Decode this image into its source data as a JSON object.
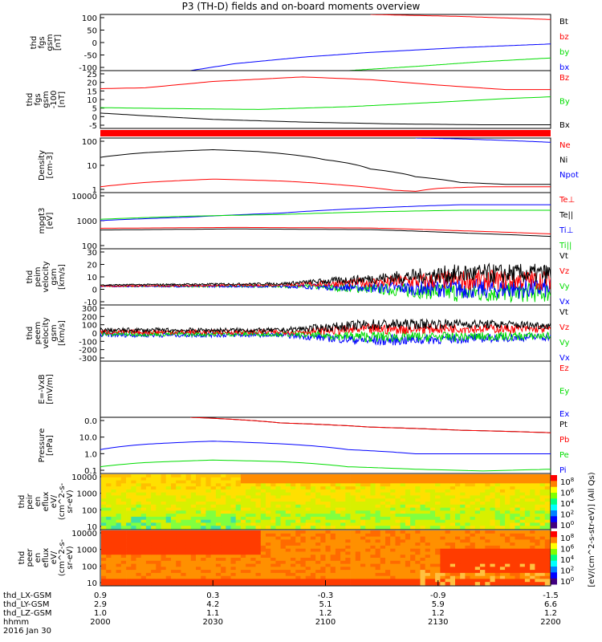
{
  "title": "P3 (TH-D) fields and on-board moments overview",
  "x_axis": {
    "rows": [
      {
        "label": "thd_LX-GSM",
        "values": [
          "0.9",
          "0.3",
          "-0.3",
          "-0.9",
          "-1.5"
        ]
      },
      {
        "label": "thd_LY-GSM",
        "values": [
          "2.9",
          "4.2",
          "5.1",
          "5.9",
          "6.6"
        ]
      },
      {
        "label": "thd_LZ-GSM",
        "values": [
          "1.0",
          "1.1",
          "1.2",
          "1.2",
          "1.2"
        ]
      },
      {
        "label": "hhmm",
        "values": [
          "2000",
          "2030",
          "2100",
          "2130",
          "2200"
        ]
      }
    ],
    "date_label": "2016 Jan 30"
  },
  "colorbar_label": "[eV/(cm^2-s-str-eV)] (All Qs)",
  "colors": {
    "black": "#000000",
    "red": "#ff0000",
    "green": "#00dd00",
    "blue": "#0000ff"
  },
  "chart_data": [
    {
      "type": "line",
      "name": "fgs_gsm",
      "ylabel_lines": [
        "thd",
        "fgs",
        "gsm",
        "[nT]"
      ],
      "ylim": [
        -100,
        100
      ],
      "yticks": [
        "100",
        "50",
        "0",
        "-50",
        "-100"
      ],
      "legend": [
        {
          "label": "Bt",
          "color": "#000000"
        },
        {
          "label": "bz",
          "color": "#ff0000"
        },
        {
          "label": "by",
          "color": "#00dd00"
        },
        {
          "label": "bx",
          "color": "#0000ff"
        }
      ],
      "series": [
        {
          "color": "#ff0000",
          "x": [
            0.6,
            0.8,
            1.0
          ],
          "y": [
            100,
            93,
            82
          ]
        },
        {
          "color": "#0000ff",
          "x": [
            0.2,
            0.3,
            0.45,
            0.6,
            0.8,
            1.0
          ],
          "y": [
            -100,
            -75,
            -52,
            -35,
            -18,
            -5
          ]
        },
        {
          "color": "#00dd00",
          "x": [
            0.55,
            0.7,
            0.85,
            1.0
          ],
          "y": [
            -100,
            -85,
            -68,
            -55
          ]
        }
      ]
    },
    {
      "type": "line",
      "name": "fgs_gsm_zoom",
      "ylabel_lines": [
        "thd",
        "fgs",
        "gsm",
        "-100",
        "[nT]"
      ],
      "ylim": [
        -7,
        25
      ],
      "yticks": [
        "25",
        "20",
        "15",
        "10",
        "5",
        "0",
        "-5"
      ],
      "legend": [
        {
          "label": "Bz",
          "color": "#ff0000"
        },
        {
          "label": "By",
          "color": "#00dd00"
        },
        {
          "label": "Bx",
          "color": "#000000"
        }
      ],
      "series": [
        {
          "color": "#ff0000",
          "x": [
            0,
            0.1,
            0.25,
            0.45,
            0.6,
            0.75,
            0.9,
            1.0
          ],
          "y": [
            15,
            15.5,
            19,
            21.5,
            20,
            17,
            14.5,
            14.5
          ]
        },
        {
          "color": "#00dd00",
          "x": [
            0,
            0.15,
            0.35,
            0.55,
            0.75,
            0.9,
            1.0
          ],
          "y": [
            4.5,
            4,
            3.5,
            5,
            7.5,
            9.5,
            10.5
          ]
        },
        {
          "color": "#000000",
          "x": [
            0,
            0.1,
            0.25,
            0.45,
            0.65,
            0.85,
            1.0
          ],
          "y": [
            1.5,
            0,
            -2,
            -3.5,
            -4.5,
            -5,
            -5
          ]
        }
      ]
    },
    {
      "type": "line",
      "name": "density",
      "ylabel_lines": [
        "Density",
        "[cm-3]"
      ],
      "scale": "log",
      "ylim": [
        0.3,
        200
      ],
      "yticks": [
        "100",
        "10",
        "1"
      ],
      "legend": [
        {
          "label": "Ne",
          "color": "#ff0000"
        },
        {
          "label": "Ni",
          "color": "#000000"
        },
        {
          "label": "Npot",
          "color": "#0000ff"
        },
        {
          "label": "",
          "color": "#000000"
        }
      ],
      "series": [
        {
          "color": "#000000",
          "x": [
            0,
            0.1,
            0.25,
            0.35,
            0.5,
            0.6,
            0.7,
            0.8,
            0.9,
            1.0
          ],
          "y": [
            20,
            35,
            50,
            40,
            15,
            5,
            2,
            1,
            0.8,
            0.8
          ]
        },
        {
          "color": "#ff0000",
          "x": [
            0,
            0.1,
            0.25,
            0.4,
            0.55,
            0.65,
            0.7,
            0.75,
            0.85,
            1.0
          ],
          "y": [
            0.6,
            1.0,
            1.5,
            1.2,
            0.7,
            0.4,
            0.35,
            0.5,
            0.6,
            0.6
          ]
        },
        {
          "color": "#0000ff",
          "x": [
            0.7,
            0.8,
            0.9,
            1.0
          ],
          "y": [
            200,
            180,
            150,
            120
          ]
        }
      ]
    },
    {
      "type": "line",
      "name": "temperature",
      "ylabel_lines": [
        "mpgt3",
        "[eV]"
      ],
      "scale": "log",
      "ylim": [
        40,
        12000
      ],
      "yticks": [
        "10000",
        "1000",
        "100"
      ],
      "legend": [
        {
          "label": "Te⊥",
          "color": "#ff0000"
        },
        {
          "label": "Te||",
          "color": "#000000"
        },
        {
          "label": "Ti⊥",
          "color": "#0000ff"
        },
        {
          "label": "Ti||",
          "color": "#00dd00"
        }
      ],
      "series": [
        {
          "color": "#0000ff",
          "x": [
            0,
            0.2,
            0.4,
            0.6,
            0.8,
            1.0
          ],
          "y": [
            700,
            1000,
            1500,
            2500,
            3500,
            3500
          ]
        },
        {
          "color": "#00dd00",
          "x": [
            0,
            0.2,
            0.4,
            0.6,
            0.8,
            1.0
          ],
          "y": [
            800,
            1100,
            1300,
            1700,
            2000,
            2000
          ]
        },
        {
          "color": "#ff0000",
          "x": [
            0,
            0.3,
            0.6,
            0.8,
            1.0
          ],
          "y": [
            320,
            350,
            330,
            250,
            180
          ]
        },
        {
          "color": "#000000",
          "x": [
            0,
            0.3,
            0.6,
            0.8,
            1.0
          ],
          "y": [
            270,
            300,
            280,
            200,
            140
          ]
        }
      ]
    },
    {
      "type": "line",
      "name": "peim_velocity",
      "ylabel_lines": [
        "thd",
        "peim",
        "velocity",
        "gsm",
        "[km/s]"
      ],
      "ylim": [
        -15,
        30
      ],
      "yticks": [
        "30",
        "20",
        "10",
        "0",
        "-10"
      ],
      "legend": [
        {
          "label": "Vt",
          "color": "#000000"
        },
        {
          "label": "Vz",
          "color": "#ff0000"
        },
        {
          "label": "Vy",
          "color": "#00dd00"
        },
        {
          "label": "Vx",
          "color": "#0000ff"
        }
      ],
      "series": [
        {
          "color": "#00dd00",
          "x": [
            0,
            0.4,
            0.6,
            0.8,
            1.0
          ],
          "y": [
            0,
            0,
            -2,
            -5,
            -5
          ]
        },
        {
          "color": "#0000ff",
          "x": [
            0,
            0.4,
            0.6,
            0.8,
            1.0
          ],
          "y": [
            0,
            0,
            -1,
            -2,
            -2
          ]
        },
        {
          "color": "#ff0000",
          "x": [
            0,
            0.4,
            0.6,
            0.8,
            1.0
          ],
          "y": [
            0,
            1,
            3,
            5,
            5
          ]
        },
        {
          "color": "#000000",
          "x": [
            0,
            0.4,
            0.6,
            0.8,
            1.0
          ],
          "y": [
            1,
            2,
            6,
            10,
            10
          ]
        }
      ],
      "noise_amplitude": [
        0.5,
        1,
        4,
        8,
        8
      ]
    },
    {
      "type": "line",
      "name": "peem_velocity",
      "ylabel_lines": [
        "thd",
        "peem",
        "velocity",
        "gsm",
        "[km/s]"
      ],
      "ylim": [
        -300,
        300
      ],
      "yticks": [
        "300",
        "200",
        "100",
        "0",
        "-100",
        "-200",
        "-300"
      ],
      "legend": [
        {
          "label": "Vt",
          "color": "#000000"
        },
        {
          "label": "Vz",
          "color": "#ff0000"
        },
        {
          "label": "Vy",
          "color": "#00dd00"
        },
        {
          "label": "Vx",
          "color": "#0000ff"
        }
      ],
      "series": [
        {
          "color": "#0000ff",
          "x": [
            0,
            0.4,
            0.6,
            0.8,
            1.0
          ],
          "y": [
            -20,
            -20,
            -80,
            -60,
            -40
          ]
        },
        {
          "color": "#00dd00",
          "x": [
            0,
            0.4,
            0.6,
            0.8,
            1.0
          ],
          "y": [
            -10,
            -10,
            -40,
            -40,
            -30
          ]
        },
        {
          "color": "#ff0000",
          "x": [
            0,
            0.4,
            0.6,
            0.8,
            1.0
          ],
          "y": [
            10,
            10,
            40,
            50,
            40
          ]
        },
        {
          "color": "#000000",
          "x": [
            0,
            0.4,
            0.6,
            0.8,
            1.0
          ],
          "y": [
            30,
            30,
            90,
            100,
            80
          ]
        }
      ],
      "noise_amplitude": [
        25,
        25,
        60,
        50,
        40
      ]
    },
    {
      "type": "line",
      "name": "efield",
      "ylabel_lines": [
        "E=-VxB",
        "[mV/m]"
      ],
      "ylim": [
        -1,
        1
      ],
      "yticks": [],
      "legend": [
        {
          "label": "Ez",
          "color": "#ff0000"
        },
        {
          "label": "Ey",
          "color": "#00dd00"
        },
        {
          "label": "Ex",
          "color": "#0000ff"
        }
      ],
      "series": []
    },
    {
      "type": "line",
      "name": "pressure",
      "ylabel_lines": [
        "Pressure",
        "[nPa]"
      ],
      "scale": "log",
      "ylim": [
        0.01,
        100
      ],
      "yticks": [
        "0.0",
        "10.0",
        "1.0",
        "0.1"
      ],
      "legend": [
        {
          "label": "Pt",
          "color": "#000000"
        },
        {
          "label": "Pb",
          "color": "#ff0000"
        },
        {
          "label": "Pe",
          "color": "#00dd00"
        },
        {
          "label": "Pi",
          "color": "#0000ff"
        }
      ],
      "series": [
        {
          "color": "#000000",
          "x": [
            0.2,
            0.4,
            0.6,
            0.8,
            1.0
          ],
          "y": [
            100,
            40,
            20,
            12,
            8
          ]
        },
        {
          "color": "#ff0000",
          "x": [
            0.2,
            0.4,
            0.6,
            0.8,
            1.0
          ],
          "y": [
            100,
            40,
            20,
            12,
            8
          ]
        },
        {
          "color": "#0000ff",
          "x": [
            0,
            0.1,
            0.25,
            0.4,
            0.55,
            0.7,
            0.85,
            1.0
          ],
          "y": [
            0.5,
            1.2,
            2.0,
            1.3,
            0.5,
            0.25,
            0.25,
            0.25
          ]
        },
        {
          "color": "#00dd00",
          "x": [
            0,
            0.1,
            0.25,
            0.4,
            0.55,
            0.7,
            0.85,
            1.0
          ],
          "y": [
            0.03,
            0.06,
            0.09,
            0.07,
            0.03,
            0.02,
            0.015,
            0.02
          ]
        }
      ]
    },
    {
      "type": "heatmap",
      "name": "peir_en_eflux",
      "ylabel_lines": [
        "thd",
        "peir",
        "en",
        "eflux",
        "eV/",
        "(cm^2-s-",
        "sr-eV)"
      ],
      "yticks": [
        "10000",
        "1000",
        "100",
        "10"
      ],
      "colorbar_ticks": [
        "10^8",
        "10^6",
        "10^4",
        "10^2",
        "10^0"
      ]
    },
    {
      "type": "heatmap",
      "name": "peer_en_eflux",
      "ylabel_lines": [
        "thd",
        "peer",
        "en",
        "eflux",
        "eV/",
        "(cm^2-s-",
        "sr-eV)"
      ],
      "yticks": [
        "10000",
        "1000",
        "100",
        "10"
      ],
      "colorbar_ticks": [
        "10^8",
        "10^6",
        "10^4",
        "10^2",
        "10^0"
      ]
    }
  ]
}
